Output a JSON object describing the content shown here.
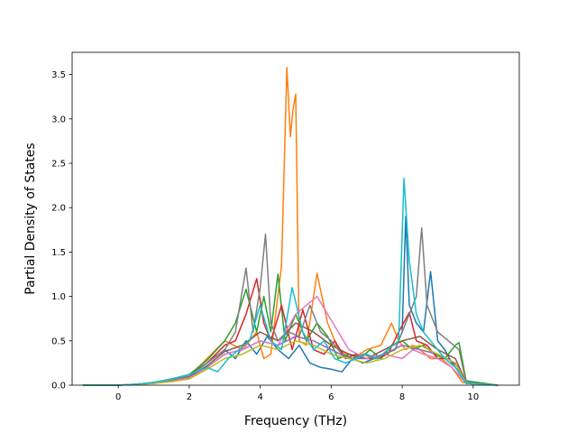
{
  "chart_data": {
    "type": "line",
    "title": "",
    "xlabel": "Frequency (THz)",
    "ylabel": "Partial Density of States",
    "xlim": [
      -1.3,
      11.3
    ],
    "ylim": [
      0,
      3.75
    ],
    "xticks": [
      0,
      2,
      4,
      6,
      8,
      10
    ],
    "xtick_labels": [
      "0",
      "2",
      "4",
      "6",
      "8",
      "10"
    ],
    "yticks": [
      0,
      0.5,
      1.0,
      1.5,
      2.0,
      2.5,
      3.0,
      3.5
    ],
    "ytick_labels": [
      "0.0",
      "0.5",
      "1.0",
      "1.5",
      "2.0",
      "2.5",
      "3.0",
      "3.5"
    ],
    "grid": false,
    "legend": "none",
    "series": [
      {
        "color": "#1f77b4",
        "x": [
          -1,
          0,
          0.5,
          1,
          1.5,
          2,
          2.5,
          3,
          3.3,
          3.6,
          3.9,
          4.2,
          4.5,
          4.8,
          5.1,
          5.4,
          5.7,
          6,
          6.3,
          6.6,
          6.9,
          7.2,
          7.5,
          7.8,
          8.0,
          8.1,
          8.2,
          8.4,
          8.6,
          8.8,
          9.0,
          9.2,
          9.4,
          9.6,
          9.8,
          10.7
        ],
        "y": [
          0,
          0,
          0.01,
          0.03,
          0.07,
          0.12,
          0.25,
          0.4,
          0.3,
          0.5,
          0.35,
          0.55,
          0.4,
          0.3,
          0.45,
          0.25,
          0.2,
          0.18,
          0.15,
          0.3,
          0.25,
          0.3,
          0.35,
          0.4,
          0.6,
          1.9,
          0.9,
          0.7,
          0.6,
          1.28,
          0.5,
          0.4,
          0.25,
          0.15,
          0.02,
          0
        ]
      },
      {
        "color": "#ff7f0e",
        "x": [
          -1,
          0,
          0.5,
          1,
          1.5,
          2,
          2.5,
          3,
          3.5,
          3.9,
          4.1,
          4.3,
          4.6,
          4.75,
          4.85,
          4.92,
          5.0,
          5.1,
          5.3,
          5.6,
          5.9,
          6.2,
          6.6,
          7.0,
          7.4,
          7.7,
          7.9,
          8.1,
          8.3,
          8.5,
          8.8,
          9.1,
          9.4,
          9.7,
          10.7
        ],
        "y": [
          0,
          0,
          0.01,
          0.03,
          0.06,
          0.1,
          0.3,
          0.5,
          0.4,
          0.6,
          0.3,
          0.35,
          1.35,
          3.58,
          2.8,
          3.1,
          3.28,
          0.5,
          0.45,
          1.26,
          0.7,
          0.4,
          0.3,
          0.4,
          0.45,
          0.7,
          0.5,
          0.4,
          0.45,
          0.4,
          0.3,
          0.3,
          0.2,
          0.03,
          0
        ]
      },
      {
        "color": "#2ca02c",
        "x": [
          -1,
          0,
          0.5,
          1,
          1.5,
          2,
          2.5,
          3,
          3.3,
          3.6,
          3.9,
          4.1,
          4.3,
          4.5,
          4.7,
          5.0,
          5.3,
          5.6,
          5.9,
          6.2,
          6.5,
          6.8,
          7.1,
          7.4,
          7.7,
          8.0,
          8.3,
          8.6,
          8.9,
          9.2,
          9.5,
          9.6,
          9.8,
          10.7
        ],
        "y": [
          0,
          0,
          0.01,
          0.03,
          0.07,
          0.12,
          0.28,
          0.5,
          0.7,
          1.08,
          0.6,
          1.0,
          0.6,
          1.25,
          0.5,
          0.8,
          0.5,
          0.7,
          0.55,
          0.3,
          0.35,
          0.3,
          0.4,
          0.3,
          0.45,
          0.5,
          0.4,
          0.45,
          0.35,
          0.3,
          0.45,
          0.48,
          0.05,
          0
        ]
      },
      {
        "color": "#d62728",
        "x": [
          -1,
          0,
          0.5,
          1,
          1.5,
          2,
          2.5,
          3,
          3.3,
          3.6,
          3.9,
          4.1,
          4.3,
          4.6,
          4.9,
          5.2,
          5.5,
          5.8,
          6.1,
          6.4,
          6.7,
          7.0,
          7.3,
          7.6,
          7.9,
          8.2,
          8.4,
          8.7,
          9.0,
          9.3,
          9.6,
          9.8,
          10.7
        ],
        "y": [
          0,
          0,
          0.01,
          0.03,
          0.06,
          0.1,
          0.25,
          0.45,
          0.5,
          0.8,
          1.2,
          0.7,
          0.5,
          0.9,
          0.4,
          0.85,
          0.4,
          0.35,
          0.5,
          0.3,
          0.35,
          0.3,
          0.3,
          0.35,
          0.6,
          0.82,
          0.5,
          0.45,
          0.3,
          0.3,
          0.2,
          0.02,
          0
        ]
      },
      {
        "color": "#9467bd",
        "x": [
          -1,
          0,
          0.5,
          1,
          1.5,
          2,
          2.5,
          3,
          3.5,
          4.0,
          4.5,
          5.0,
          5.5,
          6.0,
          6.5,
          7.0,
          7.5,
          8.0,
          8.5,
          9.0,
          9.5,
          9.8,
          10.7
        ],
        "y": [
          0,
          0,
          0.01,
          0.02,
          0.05,
          0.08,
          0.2,
          0.35,
          0.4,
          0.5,
          0.45,
          0.55,
          0.5,
          0.4,
          0.3,
          0.3,
          0.35,
          0.45,
          0.4,
          0.35,
          0.25,
          0.02,
          0
        ]
      },
      {
        "color": "#8c564b",
        "x": [
          -1,
          0,
          0.5,
          1,
          1.5,
          2,
          2.5,
          3,
          3.5,
          4.0,
          4.5,
          5.0,
          5.5,
          6.0,
          6.5,
          7.0,
          7.5,
          8.0,
          8.5,
          9.0,
          9.5,
          9.8,
          10.7
        ],
        "y": [
          0,
          0,
          0.01,
          0.02,
          0.05,
          0.09,
          0.22,
          0.38,
          0.45,
          0.6,
          0.5,
          0.7,
          0.6,
          0.45,
          0.35,
          0.3,
          0.4,
          0.5,
          0.55,
          0.4,
          0.3,
          0.03,
          0
        ]
      },
      {
        "color": "#e377c2",
        "x": [
          -1,
          0,
          0.5,
          1,
          1.5,
          2,
          2.5,
          3,
          3.5,
          4.0,
          4.5,
          5.0,
          5.3,
          5.6,
          5.9,
          6.2,
          6.5,
          7.0,
          7.5,
          8.0,
          8.3,
          8.6,
          9.0,
          9.4,
          9.8,
          10.7
        ],
        "y": [
          0,
          0,
          0.01,
          0.02,
          0.05,
          0.08,
          0.2,
          0.35,
          0.4,
          0.5,
          0.45,
          0.8,
          0.9,
          1.0,
          0.8,
          0.6,
          0.4,
          0.3,
          0.35,
          0.3,
          0.4,
          0.35,
          0.3,
          0.2,
          0.02,
          0
        ]
      },
      {
        "color": "#7f7f7f",
        "x": [
          -1,
          0,
          0.5,
          1,
          1.5,
          2,
          2.5,
          3,
          3.3,
          3.6,
          3.8,
          4.0,
          4.15,
          4.3,
          4.5,
          4.8,
          5.1,
          5.4,
          5.7,
          6.0,
          6.3,
          6.6,
          6.9,
          7.2,
          7.5,
          7.8,
          8.0,
          8.2,
          8.4,
          8.55,
          8.7,
          9.0,
          9.3,
          9.6,
          9.8,
          10.7
        ],
        "y": [
          0,
          0,
          0.01,
          0.03,
          0.06,
          0.1,
          0.25,
          0.4,
          0.6,
          1.32,
          0.6,
          1.1,
          1.7,
          0.7,
          0.5,
          0.6,
          0.55,
          0.9,
          0.6,
          0.5,
          0.35,
          0.3,
          0.35,
          0.3,
          0.35,
          0.4,
          0.6,
          0.8,
          1.0,
          1.77,
          0.9,
          0.6,
          0.5,
          0.4,
          0.03,
          0
        ]
      },
      {
        "color": "#bcbd22",
        "x": [
          -1,
          0,
          0.5,
          1,
          1.5,
          2,
          2.5,
          3,
          3.5,
          4.0,
          4.5,
          5.0,
          5.5,
          6.0,
          6.5,
          7.0,
          7.5,
          8.0,
          8.5,
          9.0,
          9.5,
          9.8,
          10.7
        ],
        "y": [
          0,
          0,
          0.01,
          0.02,
          0.04,
          0.07,
          0.18,
          0.3,
          0.35,
          0.45,
          0.4,
          0.5,
          0.45,
          0.35,
          0.3,
          0.25,
          0.3,
          0.4,
          0.45,
          0.35,
          0.25,
          0.02,
          0
        ]
      },
      {
        "color": "#17becf",
        "x": [
          -1,
          0,
          0.5,
          1,
          1.5,
          2,
          2.5,
          2.8,
          3.1,
          3.4,
          3.7,
          4.0,
          4.3,
          4.6,
          4.9,
          5.2,
          5.5,
          5.8,
          6.1,
          6.4,
          6.7,
          7.0,
          7.3,
          7.6,
          7.9,
          8.05,
          8.2,
          8.4,
          8.6,
          8.9,
          9.2,
          9.5,
          9.8,
          10.7
        ],
        "y": [
          0,
          0,
          0.01,
          0.03,
          0.07,
          0.12,
          0.2,
          0.15,
          0.3,
          0.4,
          0.5,
          0.9,
          0.5,
          0.4,
          1.1,
          0.6,
          0.4,
          0.5,
          0.3,
          0.25,
          0.3,
          0.35,
          0.3,
          0.4,
          0.5,
          2.33,
          1.4,
          0.8,
          0.6,
          0.45,
          0.3,
          0.2,
          0.02,
          0
        ]
      }
    ]
  }
}
